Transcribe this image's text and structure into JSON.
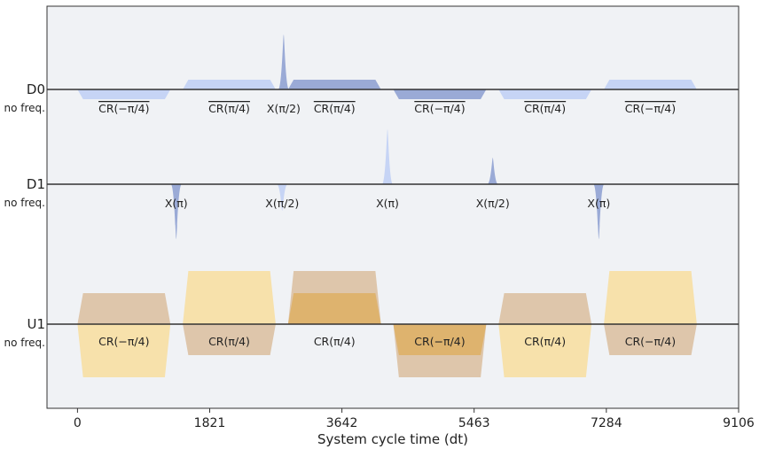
{
  "chart_data": {
    "type": "pulse-schedule",
    "xlabel": "System cycle time (dt)",
    "xlim": [
      -420,
      9106
    ],
    "xticks": [
      0,
      1821,
      3642,
      5463,
      7284,
      9106
    ],
    "channels": [
      {
        "id": "D0",
        "label": "D0",
        "sublabel": "no freq."
      },
      {
        "id": "D1",
        "label": "D1",
        "sublabel": "no freq."
      },
      {
        "id": "U1",
        "label": "U1",
        "sublabel": "no freq."
      }
    ],
    "colors": {
      "drive_light": "#c6d4f5",
      "drive_dark": "#9aaad6",
      "control_light": "#f7dfa6",
      "control_dark": "#dcc3a6",
      "control_mid": "#ddb26a",
      "background": "#f0f2f5",
      "axis": "#333333"
    },
    "pulses": [
      {
        "channel": "D0",
        "kind": "flat",
        "start": 0,
        "end": 1280,
        "amp": 0.11,
        "color": "drive_light",
        "label": "CR(−π/4)",
        "overline": true
      },
      {
        "channel": "D0",
        "kind": "flat",
        "start": 1450,
        "end": 2730,
        "amp": -0.11,
        "color": "drive_light",
        "label": "CR(π/4)",
        "overline": true
      },
      {
        "channel": "D0",
        "kind": "gauss",
        "center": 2840,
        "width": 150,
        "amp": -0.62,
        "color": "drive_dark",
        "label": "X(π/2)",
        "overline": false
      },
      {
        "channel": "D0",
        "kind": "flat",
        "start": 2900,
        "end": 4180,
        "amp": -0.11,
        "color": "drive_dark",
        "label": "CR(π/4)",
        "overline": true
      },
      {
        "channel": "D0",
        "kind": "flat",
        "start": 4350,
        "end": 5630,
        "amp": 0.11,
        "color": "drive_dark",
        "label": "CR(−π/4)",
        "overline": true
      },
      {
        "channel": "D0",
        "kind": "flat",
        "start": 5800,
        "end": 7080,
        "amp": 0.11,
        "color": "drive_light",
        "label": "CR(π/4)",
        "overline": true
      },
      {
        "channel": "D0",
        "kind": "flat",
        "start": 7250,
        "end": 8530,
        "amp": -0.11,
        "color": "drive_light",
        "label": "CR(−π/4)",
        "overline": true
      },
      {
        "channel": "D1",
        "kind": "gauss",
        "center": 1360,
        "width": 150,
        "amp": 0.62,
        "color": "drive_dark",
        "label": "X(π)",
        "overline": false
      },
      {
        "channel": "D1",
        "kind": "gauss",
        "center": 2820,
        "width": 150,
        "amp": 0.3,
        "color": "drive_light",
        "label": "X(π/2)",
        "overline": false
      },
      {
        "channel": "D1",
        "kind": "gauss",
        "center": 4270,
        "width": 150,
        "amp": -0.62,
        "color": "drive_light",
        "label": "X(π)",
        "overline": false
      },
      {
        "channel": "D1",
        "kind": "gauss",
        "center": 5720,
        "width": 150,
        "amp": -0.3,
        "color": "drive_dark",
        "label": "X(π/2)",
        "overline": false
      },
      {
        "channel": "D1",
        "kind": "gauss",
        "center": 7180,
        "width": 150,
        "amp": 0.62,
        "color": "drive_dark",
        "label": "X(π)",
        "overline": false
      },
      {
        "channel": "U1",
        "kind": "complex",
        "start": 0,
        "end": 1280,
        "re": -0.35,
        "im": 0.6,
        "re_color": "control_dark",
        "im_color": "control_light",
        "label": "CR(−π/4)"
      },
      {
        "channel": "U1",
        "kind": "complex",
        "start": 1450,
        "end": 2730,
        "re": -0.6,
        "im": 0.35,
        "re_color": "control_light",
        "im_color": "control_dark",
        "label": "CR(π/4)"
      },
      {
        "channel": "U1",
        "kind": "complex",
        "start": 2900,
        "end": 4180,
        "re": -0.6,
        "im": -0.35,
        "re_color": "control_dark",
        "im_color": "control_mid",
        "label": "CR(π/4)"
      },
      {
        "channel": "U1",
        "kind": "complex",
        "start": 4350,
        "end": 5630,
        "re": 0.6,
        "im": 0.35,
        "re_color": "control_dark",
        "im_color": "control_mid",
        "label": "CR(−π/4)"
      },
      {
        "channel": "U1",
        "kind": "complex",
        "start": 5800,
        "end": 7080,
        "re": -0.35,
        "im": 0.6,
        "re_color": "control_dark",
        "im_color": "control_light",
        "label": "CR(π/4)"
      },
      {
        "channel": "U1",
        "kind": "complex",
        "start": 7250,
        "end": 8530,
        "re": -0.6,
        "im": 0.35,
        "re_color": "control_light",
        "im_color": "control_dark",
        "label": "CR(−π/4)"
      }
    ]
  }
}
